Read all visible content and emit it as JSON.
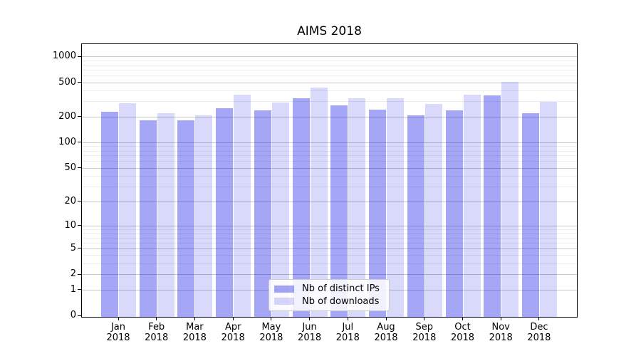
{
  "chart_data": {
    "type": "bar",
    "title": "AIMS 2018",
    "categories": [
      "Jan 2018",
      "Feb 2018",
      "Mar 2018",
      "Apr 2018",
      "May 2018",
      "Jun 2018",
      "Jul 2018",
      "Aug 2018",
      "Sep 2018",
      "Oct 2018",
      "Nov 2018",
      "Dec 2018"
    ],
    "series": [
      {
        "name": "Nb of distinct IPs",
        "values": [
          228,
          180,
          180,
          251,
          236,
          324,
          268,
          240,
          208,
          237,
          350,
          219
        ]
      },
      {
        "name": "Nb of downloads",
        "values": [
          285,
          219,
          208,
          356,
          289,
          431,
          328,
          328,
          278,
          356,
          505,
          298
        ]
      }
    ],
    "xlabel": "",
    "ylabel": "",
    "yscale": "log1p",
    "ylim": [
      0,
      1200
    ],
    "yticks": [
      0,
      1,
      2,
      5,
      10,
      20,
      50,
      100,
      200,
      500,
      1000
    ],
    "minor_yticks": [
      3,
      4,
      6,
      7,
      8,
      9,
      30,
      40,
      60,
      70,
      80,
      90,
      300,
      400,
      600,
      700,
      800,
      900
    ],
    "grid": "on",
    "legend_position": "lower center",
    "colors": {
      "bar_distinct_ips": "rgba(0,0,230,0.35)",
      "bar_downloads": "rgba(0,0,230,0.15)",
      "grid_major": "#c9c9c9",
      "grid_minor": "#ececec",
      "spine": "#000000",
      "legend_border": "#cccccc"
    }
  }
}
